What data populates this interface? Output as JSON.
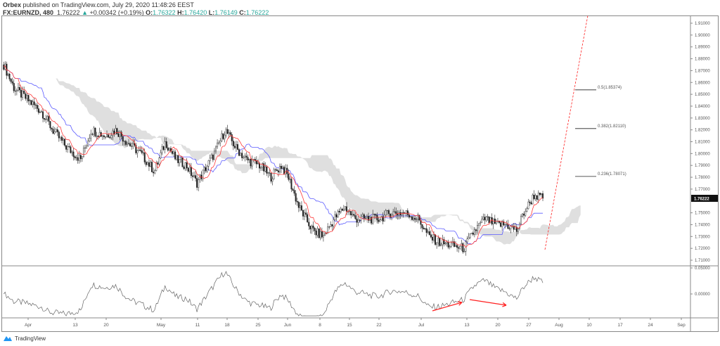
{
  "header": {
    "publisher": "Orbex",
    "published_text": "published on TradingView.com, July 29, 2020 11:48:26 EEST",
    "symbol": "FX:EURNZD, 480",
    "last": "1.76222",
    "change": "+0.00342 (+0.19%)",
    "o_label": "O:",
    "o": "1.76322",
    "h_label": "H:",
    "h": "1.76420",
    "l_label": "L:",
    "l": "1.76149",
    "c_label": "C:",
    "c": "1.76222"
  },
  "colors": {
    "up": "#26a69a",
    "tenkan": "#ff3b3b",
    "kijun": "#5b5bff",
    "cloud": "#dcdcdc",
    "arrow": "#ff2020"
  },
  "chart_data": {
    "type": "candlestick",
    "x_unit": "days since Apr 1 2020",
    "close_path": [
      [
        -5.6,
        1.875
      ],
      [
        -3.2,
        1.855
      ],
      [
        0,
        1.845
      ],
      [
        3.2,
        1.835
      ],
      [
        5.6,
        1.82
      ],
      [
        8.9,
        1.805
      ],
      [
        12.1,
        1.795
      ],
      [
        14.5,
        1.82
      ],
      [
        17.7,
        1.815
      ],
      [
        20.2,
        1.82
      ],
      [
        22.6,
        1.81
      ],
      [
        25.8,
        1.8
      ],
      [
        29,
        1.785
      ],
      [
        31.5,
        1.81
      ],
      [
        33.9,
        1.795
      ],
      [
        36.3,
        1.79
      ],
      [
        38.7,
        1.775
      ],
      [
        41.1,
        1.79
      ],
      [
        42.7,
        1.8
      ],
      [
        45.2,
        1.82
      ],
      [
        47.6,
        1.805
      ],
      [
        50,
        1.795
      ],
      [
        53.2,
        1.79
      ],
      [
        55.6,
        1.78
      ],
      [
        58.1,
        1.79
      ],
      [
        59.7,
        1.78
      ],
      [
        62.1,
        1.755
      ],
      [
        65.3,
        1.735
      ],
      [
        67.7,
        1.73
      ],
      [
        70.2,
        1.745
      ],
      [
        72.6,
        1.755
      ],
      [
        75,
        1.745
      ],
      [
        77.4,
        1.745
      ],
      [
        80.6,
        1.745
      ],
      [
        83.1,
        1.75
      ],
      [
        86.3,
        1.75
      ],
      [
        89.5,
        1.745
      ],
      [
        91.9,
        1.73
      ],
      [
        94.4,
        1.725
      ],
      [
        97.6,
        1.722
      ],
      [
        100,
        1.72
      ],
      [
        102.4,
        1.735
      ],
      [
        104.8,
        1.745
      ],
      [
        107.3,
        1.74
      ],
      [
        109.7,
        1.74
      ],
      [
        112.1,
        1.735
      ],
      [
        113.7,
        1.75
      ],
      [
        116.1,
        1.765
      ],
      [
        118.1,
        1.7622
      ]
    ],
    "y_ticks": [
      "1.91000",
      "1.90000",
      "1.89000",
      "1.88000",
      "1.87000",
      "1.86000",
      "1.85000",
      "1.84000",
      "1.83000",
      "1.82000",
      "1.81000",
      "1.80000",
      "1.79000",
      "1.78000",
      "1.77000",
      "1.75000",
      "1.74000",
      "1.73000",
      "1.72000",
      "1.71000"
    ],
    "ylim": [
      1.71,
      1.91
    ],
    "last_price_label": "1.76222",
    "x_ticks": [
      "Apr",
      "13",
      "20",
      "May",
      "11",
      "18",
      "25",
      "Jun",
      "8",
      "15",
      "22",
      "Jul",
      "13",
      "20",
      "27",
      "Aug",
      "10",
      "17",
      "24",
      "Sep"
    ],
    "fib_levels": [
      {
        "label": "0.5(1.85374)",
        "price": 1.85374
      },
      {
        "label": "0.382(1.82110)",
        "price": 1.8211
      },
      {
        "label": "0.236(1.78071)",
        "price": 1.78071
      }
    ],
    "oscillator": {
      "y_ticks": [
        "0.05000",
        "0.00000"
      ],
      "ylim": [
        -0.045,
        0.06
      ]
    }
  },
  "footer": {
    "brand": "TradingView"
  }
}
